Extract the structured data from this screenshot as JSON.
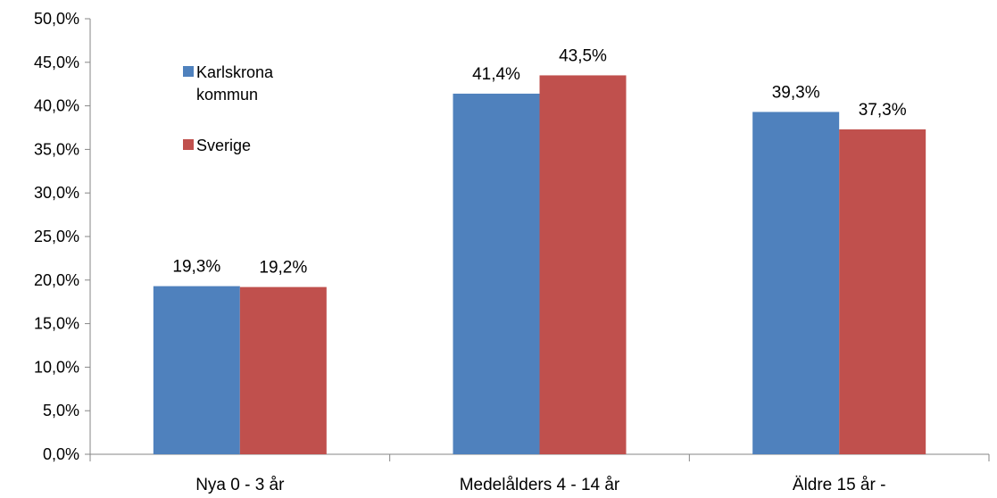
{
  "chart_data": {
    "type": "bar",
    "categories": [
      "Nya 0 - 3 år",
      "Medelålders 4 - 14 år",
      "Äldre 15 år -"
    ],
    "series": [
      {
        "name": "Karlskrona kommun",
        "legend_lines": [
          "Karlskrona",
          "kommun"
        ],
        "values": [
          19.3,
          41.4,
          39.3
        ],
        "labels": [
          "19,3%",
          "41,4%",
          "39,3%"
        ],
        "color": "#4F81BD"
      },
      {
        "name": "Sverige",
        "legend_lines": [
          "Sverige"
        ],
        "values": [
          19.2,
          43.5,
          37.3
        ],
        "labels": [
          "19,2%",
          "43,5%",
          "37,3%"
        ],
        "color": "#C0504D"
      }
    ],
    "ylim": [
      0,
      50
    ],
    "yticks": [
      "0,0%",
      "5,0%",
      "10,0%",
      "15,0%",
      "20,0%",
      "25,0%",
      "30,0%",
      "35,0%",
      "40,0%",
      "45,0%",
      "50,0%"
    ],
    "title": "",
    "xlabel": "",
    "ylabel": "",
    "grid": false,
    "legend_position": "top-left inside plot"
  }
}
